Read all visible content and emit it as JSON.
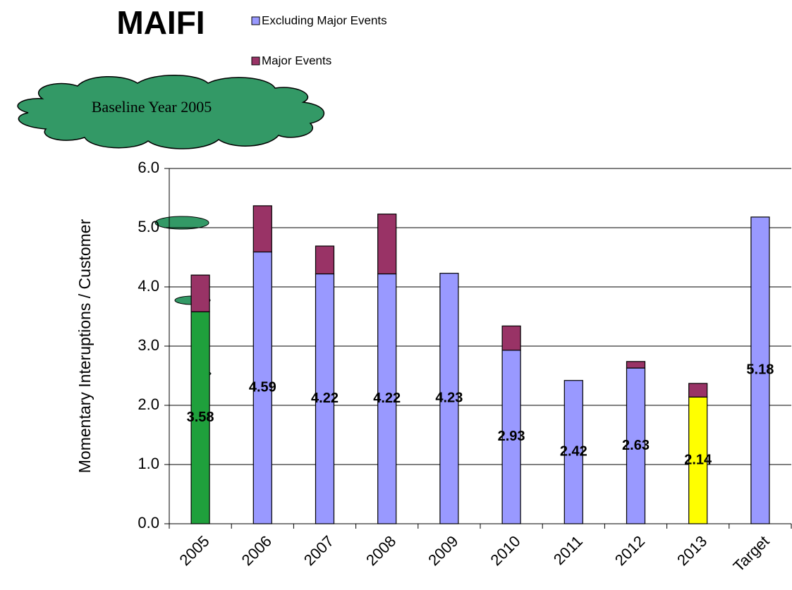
{
  "chart_data": {
    "type": "bar",
    "stacked": true,
    "title": "MAIFI",
    "annotation": "Baseline Year 2005",
    "ylabel": "Momentary Interuptions / Customer",
    "categories": [
      "2005",
      "2006",
      "2007",
      "2008",
      "2009",
      "2010",
      "2011",
      "2012",
      "2013",
      "Target"
    ],
    "series": [
      {
        "name": "Excluding Major Events",
        "color": "#9999ff",
        "colors": [
          "#1fa03c",
          "#9999ff",
          "#9999ff",
          "#9999ff",
          "#9999ff",
          "#9999ff",
          "#9999ff",
          "#9999ff",
          "#ffff00",
          "#9999ff"
        ],
        "values": [
          3.58,
          4.59,
          4.22,
          4.22,
          4.23,
          2.93,
          2.42,
          2.63,
          2.14,
          5.18
        ]
      },
      {
        "name": "Major Events",
        "color": "#993366",
        "values": [
          0.62,
          0.78,
          0.47,
          1.01,
          0,
          0.41,
          0,
          0.11,
          0.23,
          0
        ]
      }
    ],
    "ylim": [
      0,
      6
    ],
    "yticks": [
      {
        "value": 0,
        "label": "0.0"
      },
      {
        "value": 1,
        "label": "1.0"
      },
      {
        "value": 2,
        "label": "2.0"
      },
      {
        "value": 3,
        "label": "3.0"
      },
      {
        "value": 4,
        "label": "4.0"
      },
      {
        "value": 5,
        "label": "5.0"
      },
      {
        "value": 6,
        "label": "6.0"
      }
    ],
    "grid": true
  }
}
